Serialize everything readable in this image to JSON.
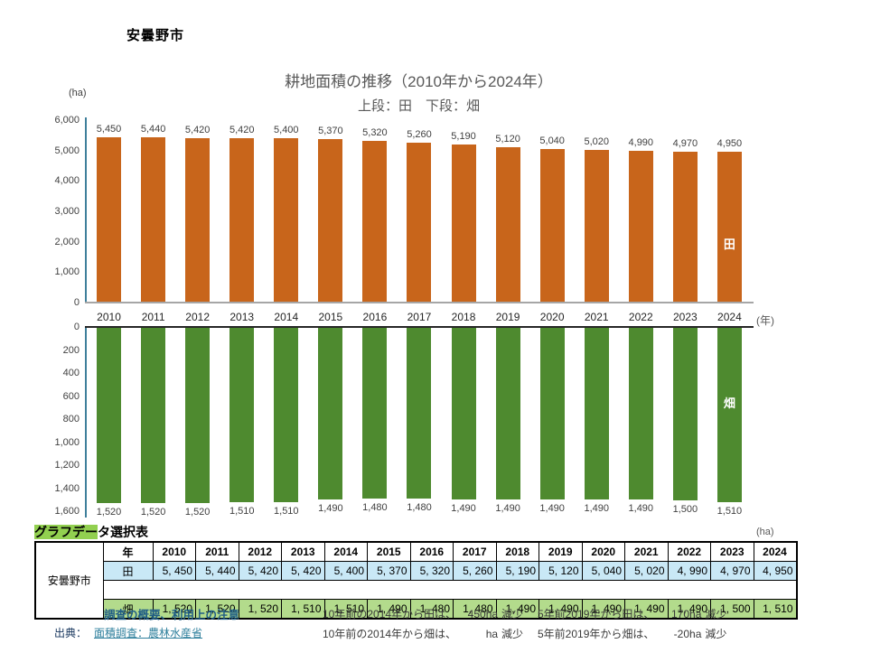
{
  "page": {
    "region_label": "安曇野市"
  },
  "chart_data": [
    {
      "type": "bar",
      "title": "耕地面積の推移（2010年から2024年）",
      "subtitle": "上段：田　下段：畑",
      "series_name": "田",
      "categories": [
        "2010",
        "2011",
        "2012",
        "2013",
        "2014",
        "2015",
        "2016",
        "2017",
        "2018",
        "2019",
        "2020",
        "2021",
        "2022",
        "2023",
        "2024"
      ],
      "values": [
        5450,
        5440,
        5420,
        5420,
        5400,
        5370,
        5320,
        5260,
        5190,
        5120,
        5040,
        5020,
        4990,
        4970,
        4950
      ],
      "value_labels": [
        "5,450",
        "5,440",
        "5,420",
        "5,420",
        "5,400",
        "5,370",
        "5,320",
        "5,260",
        "5,190",
        "5,120",
        "5,040",
        "5,020",
        "4,990",
        "4,970",
        "4,950"
      ],
      "ylabel": "(ha)",
      "xlabel": "(年)",
      "ylim": [
        0,
        6000
      ],
      "yticks": [
        "6,000",
        "5,000",
        "4,000",
        "3,000",
        "2,000",
        "1,000",
        "0"
      ],
      "bar_color": "#C8651B",
      "orientation": "up",
      "grid": false,
      "legend": "none"
    },
    {
      "type": "bar",
      "series_name": "畑",
      "categories": [
        "2010",
        "2011",
        "2012",
        "2013",
        "2014",
        "2015",
        "2016",
        "2017",
        "2018",
        "2019",
        "2020",
        "2021",
        "2022",
        "2023",
        "2024"
      ],
      "values": [
        1520,
        1520,
        1520,
        1510,
        1510,
        1490,
        1480,
        1480,
        1490,
        1490,
        1490,
        1490,
        1490,
        1500,
        1510
      ],
      "value_labels": [
        "1,520",
        "1,520",
        "1,520",
        "1,510",
        "1,510",
        "1,490",
        "1,480",
        "1,480",
        "1,490",
        "1,490",
        "1,490",
        "1,490",
        "1,490",
        "1,500",
        "1,510"
      ],
      "ylabel": "(ha)",
      "xlabel": "",
      "ylim": [
        0,
        1600
      ],
      "yticks": [
        "0",
        "200",
        "400",
        "600",
        "800",
        "1,000",
        "1,200",
        "1,400",
        "1,600"
      ],
      "bar_color": "#4E8A2F",
      "orientation": "down",
      "grid": false,
      "legend": "none"
    }
  ],
  "table": {
    "title_highlight": "グラフデー",
    "title_rest": "タ選択表",
    "highlight_color": "#92D050",
    "row_label": "安曇野市",
    "header_label": "年",
    "years": [
      "2010",
      "2011",
      "2012",
      "2013",
      "2014",
      "2015",
      "2016",
      "2017",
      "2018",
      "2019",
      "2020",
      "2021",
      "2022",
      "2023",
      "2024"
    ],
    "rows": [
      {
        "label": "田",
        "bg": "#C9E8F6",
        "values": [
          "5, 450",
          "5, 440",
          "5, 420",
          "5, 420",
          "5, 400",
          "5, 370",
          "5, 320",
          "5, 260",
          "5, 190",
          "5, 120",
          "5, 040",
          "5, 020",
          "4, 990",
          "4, 970",
          "4, 950"
        ]
      },
      {
        "label": "畑",
        "bg": "#B3DB8C",
        "values": [
          "1, 520",
          "1, 520",
          "1, 520",
          "1, 510",
          "1, 510",
          "1, 490",
          "1, 480",
          "1, 480",
          "1, 490",
          "1, 490",
          "1, 490",
          "1, 490",
          "1, 490",
          "1, 500",
          "1, 510"
        ]
      }
    ]
  },
  "footer": {
    "notes_link": "調査の概要、利用上の注意",
    "source_label": "出典：",
    "source_link": "面積調査：農林水産省",
    "stats": [
      {
        "lt": "10年前の2014年から田は、",
        "lv": "450ha",
        "ls": "減少",
        "rt": "5年前2019年から田は、",
        "rv": "170ha",
        "rs": "減少"
      },
      {
        "lt": "10年前の2014年から畑は、",
        "lv": "ha",
        "ls": "減少",
        "rt": "5年前2019年から畑は、",
        "rv": "-20ha",
        "rs": "減少"
      }
    ]
  }
}
